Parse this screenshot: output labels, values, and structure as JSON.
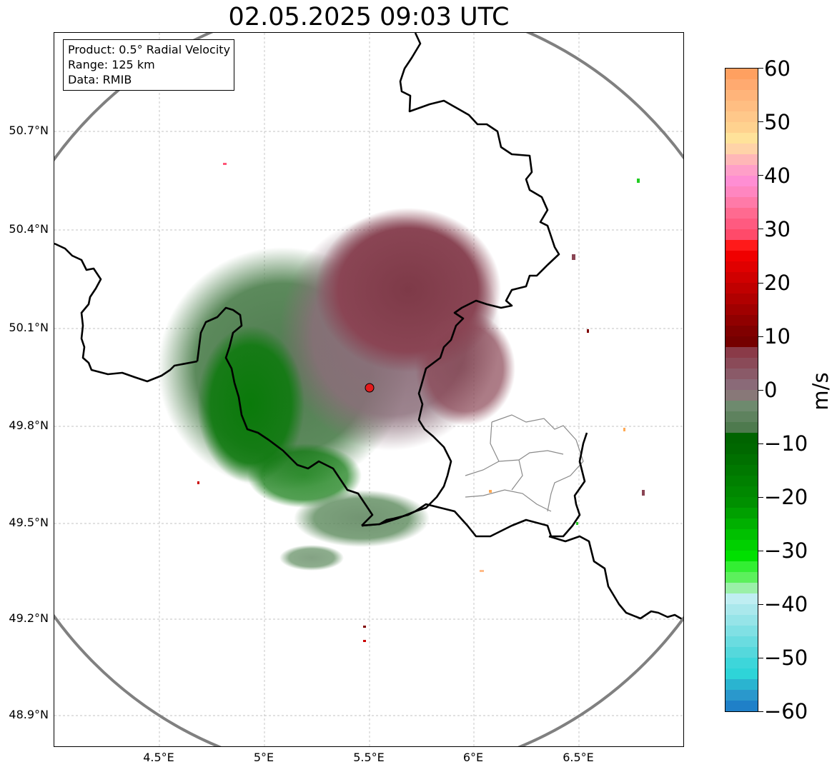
{
  "title": "02.05.2025 09:03 UTC",
  "info_box": {
    "product": "Product: 0.5° Radial Velocity",
    "range": "Range: 125 km",
    "data": "Data: RMIB"
  },
  "lat_ticks": [
    "50.7°N",
    "50.4°N",
    "50.1°N",
    "49.8°N",
    "49.5°N",
    "49.2°N",
    "48.9°N"
  ],
  "lon_ticks": [
    "4.5°E",
    "5°E",
    "5.5°E",
    "6°E",
    "6.5°E"
  ],
  "colorbar": {
    "label": "m/s",
    "ticks": [
      "60",
      "50",
      "40",
      "30",
      "20",
      "10",
      "0",
      "−10",
      "−20",
      "−30",
      "−40",
      "−50",
      "−60"
    ],
    "range": [
      -60,
      60
    ]
  },
  "radar_site": {
    "lon": 5.5,
    "lat": 49.91
  },
  "colors": {
    "range_ring": "#808080",
    "border": "#000000",
    "region_border": "#8a8a8a",
    "radar_marker": "#e41a1c",
    "gridline": "#b0b0b0"
  }
}
